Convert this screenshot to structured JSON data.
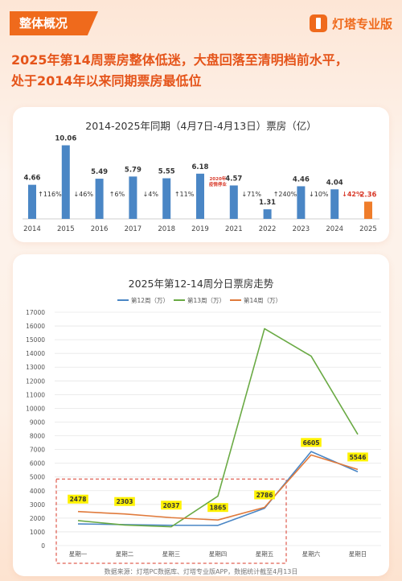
{
  "header": {
    "section_tag": "整体概况",
    "logo_text": "灯塔专业版",
    "headline_line1": "2025年第14周票房整体低迷，大盘回落至清明档前水平，",
    "headline_line2": "处于2014年以来同期票房最低位"
  },
  "footer": {
    "source": "数据来源：灯塔PC数据库、灯塔专业版APP，数据统计截至4月13日"
  },
  "colors": {
    "accent": "#ef6a1c",
    "bar_blue": "#4a86c5",
    "bar_orange": "#ef7d2b",
    "week12": "#4a86c5",
    "week13": "#6aaa44",
    "week14": "#e07a3b",
    "highlight_label_bg": "#fff200"
  },
  "chart_data": [
    {
      "type": "bar",
      "title": "2014-2025年同期（4月7日-4月13日）票房（亿）",
      "categories": [
        "2014",
        "2015",
        "2016",
        "2017",
        "2018",
        "2019",
        "2021",
        "2022",
        "2023",
        "2024",
        "2025"
      ],
      "values": [
        4.66,
        10.06,
        5.49,
        5.79,
        5.55,
        6.18,
        4.57,
        1.31,
        4.46,
        4.04,
        2.36
      ],
      "value_labels": [
        "4.66",
        "10.06",
        "5.49",
        "5.79",
        "5.55",
        "6.18",
        "4.57",
        "1.31",
        "4.46",
        "4.04",
        "2.36"
      ],
      "changes": [
        {
          "after": "2014",
          "text": "↑116%",
          "color": "#333333"
        },
        {
          "after": "2015",
          "text": "↓46%",
          "color": "#333333"
        },
        {
          "after": "2016",
          "text": "↑6%",
          "color": "#333333"
        },
        {
          "after": "2017",
          "text": "↓4%",
          "color": "#333333"
        },
        {
          "after": "2018",
          "text": "↑11%",
          "color": "#333333"
        },
        {
          "after": "2019",
          "text": "2020年疫情停业",
          "color": "#d83a2a"
        },
        {
          "after": "2021",
          "text": "↓71%",
          "color": "#333333"
        },
        {
          "after": "2022",
          "text": "↑240%",
          "color": "#333333"
        },
        {
          "after": "2023",
          "text": "↓10%",
          "color": "#333333"
        },
        {
          "after": "2024",
          "text": "↓42%",
          "color": "#d83a2a"
        }
      ],
      "highlight": "2025",
      "ylim": [
        0,
        11
      ]
    },
    {
      "type": "line",
      "title": "2025年第12-14周分日票房走势",
      "categories": [
        "星期一",
        "星期二",
        "星期三",
        "星期四",
        "星期五",
        "星期六",
        "星期日"
      ],
      "yticks": [
        0,
        1000,
        2000,
        3000,
        4000,
        5000,
        6000,
        7000,
        8000,
        9000,
        10000,
        11000,
        12000,
        13000,
        14000,
        15000,
        16000,
        17000
      ],
      "ylim": [
        0,
        17000
      ],
      "series": [
        {
          "name": "第12周（万）",
          "values": [
            1580,
            1530,
            1480,
            1470,
            2720,
            6850,
            5380
          ]
        },
        {
          "name": "第13周（万）",
          "values": [
            1820,
            1500,
            1370,
            3600,
            15800,
            13800,
            8100
          ]
        },
        {
          "name": "第14周（万）",
          "values": [
            2478,
            2303,
            2037,
            1865,
            2786,
            6605,
            5546
          ]
        }
      ],
      "data_labels": [
        "2478",
        "2303",
        "2037",
        "1865",
        "2786",
        "6605",
        "5546"
      ],
      "highlight_box": {
        "from": "星期一",
        "to": "星期五"
      }
    }
  ]
}
